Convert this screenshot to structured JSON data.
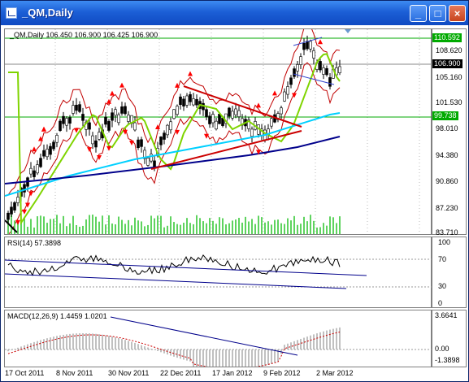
{
  "window": {
    "title": "_QM,Daily",
    "minimize_symbol": "_",
    "maximize_symbol": "□",
    "close_symbol": "×"
  },
  "main_chart": {
    "header": "_QM,Daily  106.450 106.900 106.425 106.900",
    "price_levels": [
      "110.592",
      "108.620",
      "106.900",
      "105.160",
      "101.530",
      "99.738",
      "98.010",
      "94.380",
      "90.860",
      "87.230",
      "83.710"
    ],
    "highlight_levels": {
      "resistance": "110.592",
      "support": "99.738",
      "current": "106.900"
    },
    "colors": {
      "up_fractal": "#ff0000",
      "bands": "#c00000",
      "ma_fast": "#7fd400",
      "ma_mid": "#00d0ff",
      "ma_slow": "#00008b",
      "level": "#00aa00",
      "trendline": "#cc0000"
    }
  },
  "rsi_panel": {
    "header": "RSI(14) 57.3898",
    "levels": [
      "100",
      "70",
      "30",
      "0"
    ]
  },
  "macd_panel": {
    "header": "MACD(12,26,9) 1.4459 1.0201",
    "levels": [
      "3.6641",
      "0.00",
      "-1.3898"
    ]
  },
  "dates": [
    "17 Oct 2011",
    "8 Nov 2011",
    "30 Nov 2011",
    "22 Dec 2011",
    "17 Jan 2012",
    "9 Feb 2012",
    "2 Mar 2012"
  ]
}
